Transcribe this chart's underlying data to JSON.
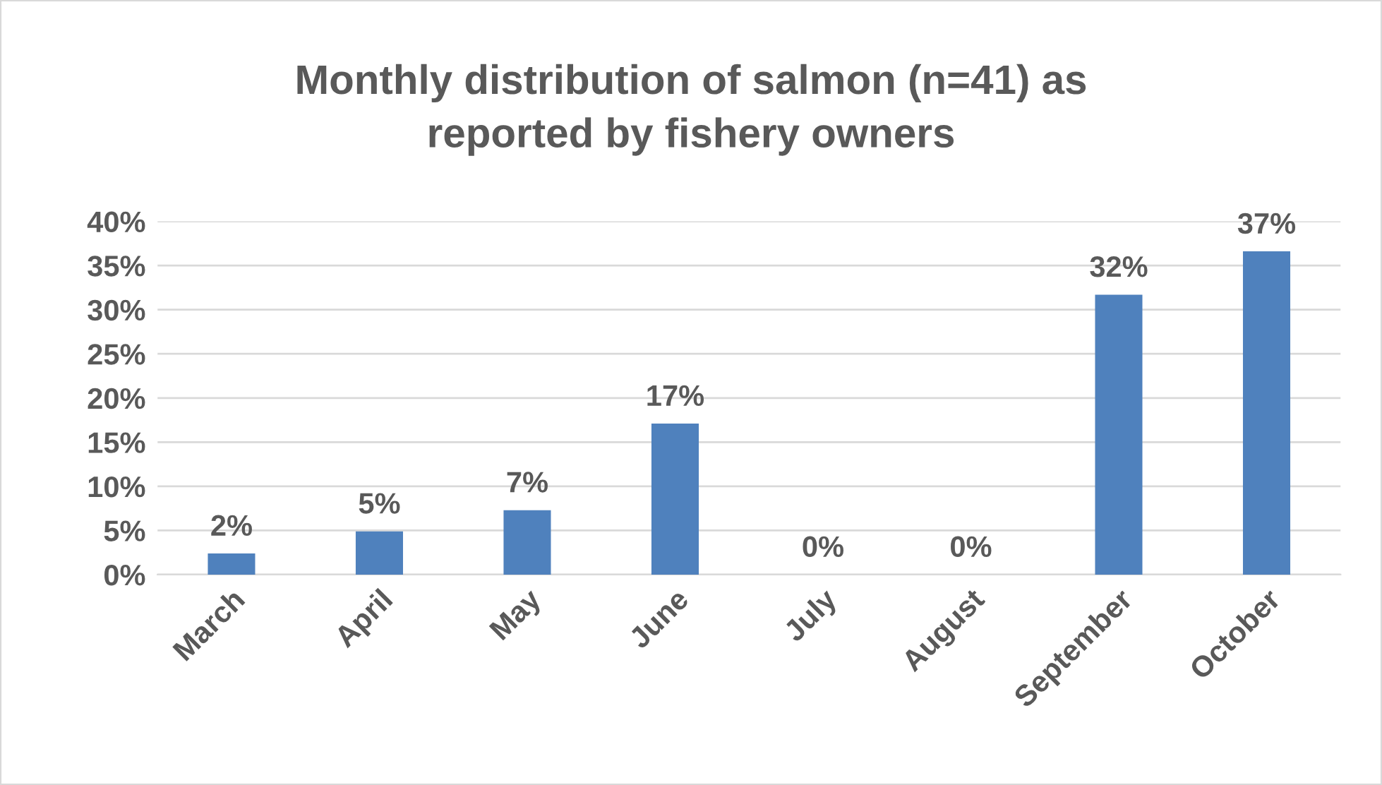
{
  "chart_data": {
    "type": "bar",
    "title": "Monthly distribution of salmon (n=41) as\nreported by fishery owners",
    "categories": [
      "March",
      "April",
      "May",
      "June",
      "July",
      "August",
      "September",
      "October"
    ],
    "values": [
      2.4,
      4.9,
      7.3,
      17.1,
      0,
      0,
      31.7,
      36.6
    ],
    "value_labels": [
      "2%",
      "5%",
      "7%",
      "17%",
      "0%",
      "0%",
      "32%",
      "37%"
    ],
    "color": "#4f81bd",
    "ylim": [
      0,
      40
    ],
    "yticks": [
      {
        "value": 0,
        "label": "0%"
      },
      {
        "value": 5,
        "label": "5%"
      },
      {
        "value": 10,
        "label": "10%"
      },
      {
        "value": 15,
        "label": "15%"
      },
      {
        "value": 20,
        "label": "20%"
      },
      {
        "value": 25,
        "label": "25%"
      },
      {
        "value": 30,
        "label": "30%"
      },
      {
        "value": 35,
        "label": "35%"
      },
      {
        "value": 40,
        "label": "40%"
      }
    ],
    "grid": "y",
    "legend": false
  }
}
